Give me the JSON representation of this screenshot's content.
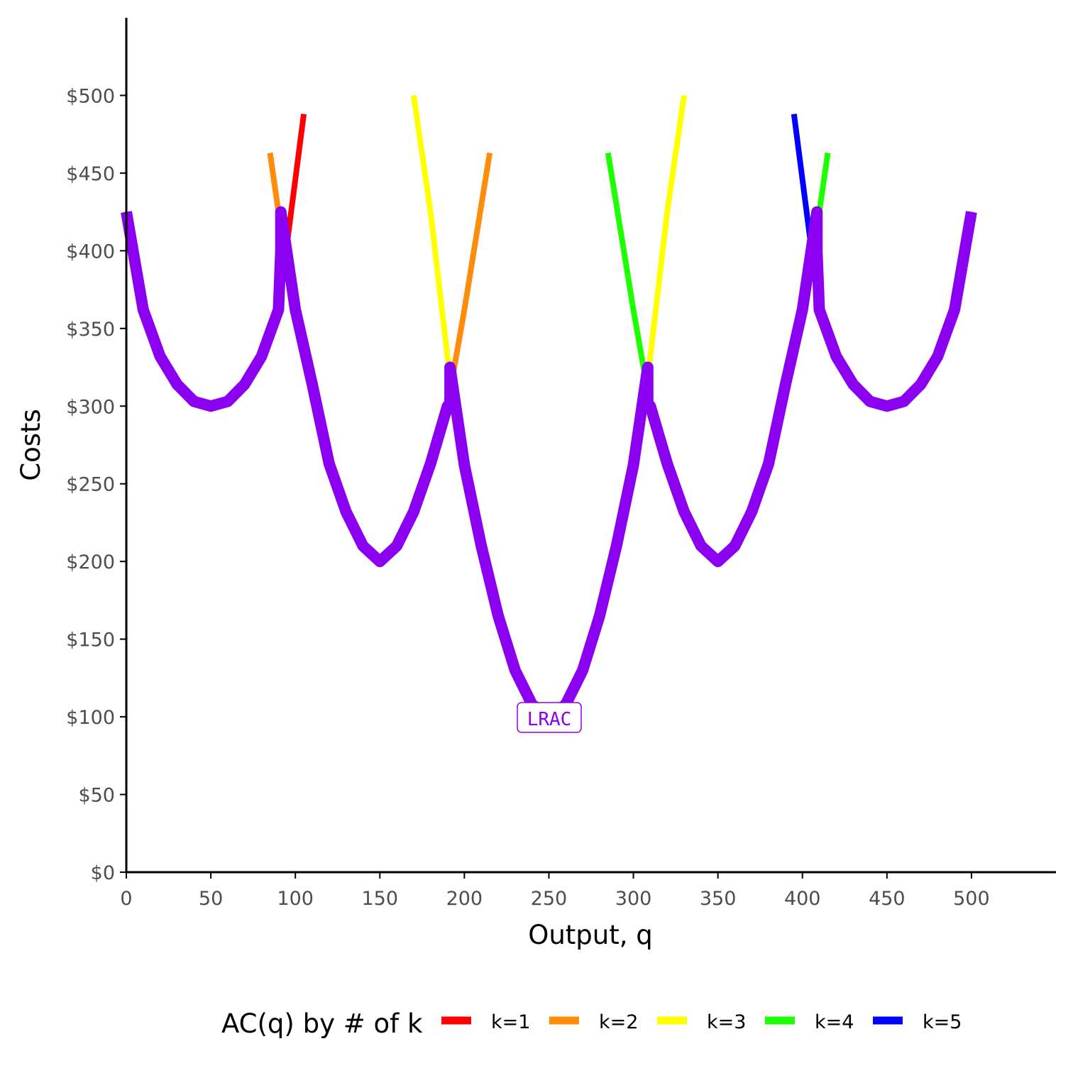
{
  "chart_data": {
    "type": "line",
    "xlabel": "Output, q",
    "ylabel": "Costs",
    "xlim": [
      0,
      550
    ],
    "ylim": [
      0,
      550
    ],
    "x_ticks": [
      0,
      50,
      100,
      150,
      200,
      250,
      300,
      350,
      400,
      450,
      500
    ],
    "x_tick_labels": [
      "0",
      "50",
      "100",
      "150",
      "200",
      "250",
      "300",
      "350",
      "400",
      "450",
      "500"
    ],
    "y_ticks": [
      0,
      50,
      100,
      150,
      200,
      250,
      300,
      350,
      400,
      450,
      500
    ],
    "y_tick_labels": [
      "$0",
      "$50",
      "$100",
      "$150",
      "$200",
      "$250",
      "$300",
      "$350",
      "$400",
      "$450",
      "$500"
    ],
    "legend": {
      "title": "AC(q) by # of k",
      "position": "bottom",
      "entries": [
        {
          "label": "k=1",
          "color": "#ff0000"
        },
        {
          "label": "k=2",
          "color": "#ff8c0a"
        },
        {
          "label": "k=3",
          "color": "#ffff00"
        },
        {
          "label": "k=4",
          "color": "#1eff00"
        },
        {
          "label": "k=5",
          "color": "#0000ff"
        }
      ]
    },
    "series": [
      {
        "name": "k=1",
        "color": "#ff0000",
        "points": [
          [
            0,
            425
          ],
          [
            10,
            362
          ],
          [
            20,
            332
          ],
          [
            30,
            314
          ],
          [
            40,
            303
          ],
          [
            50,
            300
          ],
          [
            60,
            303
          ],
          [
            70,
            314
          ],
          [
            80,
            332
          ],
          [
            90,
            362
          ],
          [
            105,
            488
          ]
        ]
      },
      {
        "name": "k=2",
        "color": "#ff8c0a",
        "points": [
          [
            85,
            463
          ],
          [
            90,
            425
          ],
          [
            100,
            362
          ],
          [
            110,
            314
          ],
          [
            120,
            263
          ],
          [
            130,
            232
          ],
          [
            140,
            210
          ],
          [
            150,
            200
          ],
          [
            160,
            210
          ],
          [
            170,
            232
          ],
          [
            180,
            263
          ],
          [
            190,
            300
          ],
          [
            200,
            362
          ],
          [
            215,
            463
          ]
        ]
      },
      {
        "name": "k=3",
        "color": "#ffff00",
        "points": [
          [
            170,
            500
          ],
          [
            180,
            425
          ],
          [
            190,
            332
          ],
          [
            200,
            262
          ],
          [
            210,
            210
          ],
          [
            220,
            165
          ],
          [
            230,
            130
          ],
          [
            240,
            108
          ],
          [
            250,
            100
          ],
          [
            260,
            108
          ],
          [
            270,
            130
          ],
          [
            280,
            165
          ],
          [
            290,
            210
          ],
          [
            300,
            262
          ],
          [
            310,
            332
          ],
          [
            320,
            425
          ],
          [
            330,
            500
          ]
        ]
      },
      {
        "name": "k=4",
        "color": "#1eff00",
        "points": [
          [
            285,
            463
          ],
          [
            300,
            362
          ],
          [
            310,
            300
          ],
          [
            320,
            263
          ],
          [
            330,
            232
          ],
          [
            340,
            210
          ],
          [
            350,
            200
          ],
          [
            360,
            210
          ],
          [
            370,
            232
          ],
          [
            380,
            263
          ],
          [
            390,
            314
          ],
          [
            400,
            362
          ],
          [
            410,
            425
          ],
          [
            415,
            463
          ]
        ]
      },
      {
        "name": "k=5",
        "color": "#0000ff",
        "points": [
          [
            395,
            488
          ],
          [
            410,
            362
          ],
          [
            420,
            332
          ],
          [
            430,
            314
          ],
          [
            440,
            303
          ],
          [
            450,
            300
          ],
          [
            460,
            303
          ],
          [
            470,
            314
          ],
          [
            480,
            332
          ],
          [
            490,
            362
          ],
          [
            500,
            425
          ]
        ]
      }
    ],
    "lrac": {
      "label": "LRAC",
      "color": "#8b00f0",
      "label_position": [
        250,
        100
      ],
      "points": [
        [
          0,
          425
        ],
        [
          10,
          362
        ],
        [
          20,
          332
        ],
        [
          30,
          314
        ],
        [
          40,
          303
        ],
        [
          50,
          300
        ],
        [
          60,
          303
        ],
        [
          70,
          314
        ],
        [
          80,
          332
        ],
        [
          90,
          362
        ],
        [
          91.4,
          400
        ],
        [
          91.4,
          425
        ],
        [
          100,
          362
        ],
        [
          110,
          314
        ],
        [
          120,
          263
        ],
        [
          130,
          232
        ],
        [
          140,
          210
        ],
        [
          150,
          200
        ],
        [
          160,
          210
        ],
        [
          170,
          232
        ],
        [
          180,
          263
        ],
        [
          190,
          300
        ],
        [
          191.5,
          300
        ],
        [
          191.5,
          325
        ],
        [
          200,
          262
        ],
        [
          210,
          210
        ],
        [
          220,
          165
        ],
        [
          230,
          130
        ],
        [
          240,
          108
        ],
        [
          250,
          100
        ],
        [
          260,
          108
        ],
        [
          270,
          130
        ],
        [
          280,
          165
        ],
        [
          290,
          210
        ],
        [
          300,
          262
        ],
        [
          308.5,
          325
        ],
        [
          308.5,
          300
        ],
        [
          310,
          300
        ],
        [
          320,
          263
        ],
        [
          330,
          232
        ],
        [
          340,
          210
        ],
        [
          350,
          200
        ],
        [
          360,
          210
        ],
        [
          370,
          232
        ],
        [
          380,
          263
        ],
        [
          390,
          314
        ],
        [
          400,
          362
        ],
        [
          408.6,
          425
        ],
        [
          408.6,
          400
        ],
        [
          410,
          362
        ],
        [
          420,
          332
        ],
        [
          430,
          314
        ],
        [
          440,
          303
        ],
        [
          450,
          300
        ],
        [
          460,
          303
        ],
        [
          470,
          314
        ],
        [
          480,
          332
        ],
        [
          490,
          362
        ],
        [
          500,
          425
        ]
      ]
    }
  }
}
